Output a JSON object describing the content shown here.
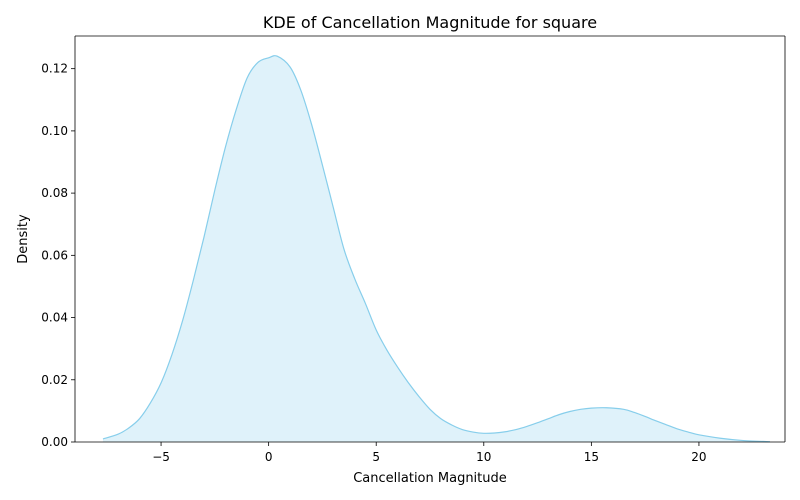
{
  "chart_data": {
    "type": "area",
    "title": "KDE of Cancellation Magnitude for square",
    "xlabel": "Cancellation Magnitude",
    "ylabel": "Density",
    "xlim": [
      -9,
      24
    ],
    "ylim": [
      0,
      0.1305
    ],
    "grid": false,
    "legend": "none",
    "x_ticks": [
      -5,
      0,
      5,
      10,
      15,
      20
    ],
    "x_tick_labels": [
      "−5",
      "0",
      "5",
      "10",
      "15",
      "20"
    ],
    "y_ticks": [
      0.0,
      0.02,
      0.04,
      0.06,
      0.08,
      0.1,
      0.12
    ],
    "y_tick_labels": [
      "0.00",
      "0.02",
      "0.04",
      "0.06",
      "0.08",
      "0.10",
      "0.12"
    ],
    "colors": {
      "line": "#87ceeb",
      "fill": "#87ceeb",
      "fill_opacity": 0.27,
      "axis": "#000000"
    },
    "series": [
      {
        "x": [
          -7.7,
          -7.0,
          -6.5,
          -6.0,
          -5.5,
          -5.0,
          -4.5,
          -4.0,
          -3.5,
          -3.0,
          -2.5,
          -2.0,
          -1.5,
          -1.0,
          -0.5,
          0.0,
          0.4,
          1.0,
          1.5,
          2.0,
          2.5,
          3.0,
          3.5,
          4.0,
          4.5,
          5.0,
          5.5,
          6.0,
          6.5,
          7.0,
          7.5,
          8.0,
          8.5,
          9.0,
          9.5,
          10.0,
          10.5,
          11.0,
          11.5,
          12.0,
          12.5,
          13.0,
          13.5,
          14.0,
          14.5,
          15.0,
          15.7,
          16.5,
          17.0,
          17.5,
          18.0,
          18.5,
          19.0,
          19.5,
          20.0,
          21.0,
          22.0,
          23.3
        ],
        "values": [
          0.001,
          0.0025,
          0.0045,
          0.0075,
          0.0125,
          0.019,
          0.028,
          0.039,
          0.052,
          0.066,
          0.081,
          0.095,
          0.107,
          0.117,
          0.122,
          0.1235,
          0.124,
          0.1205,
          0.113,
          0.102,
          0.089,
          0.0755,
          0.062,
          0.0525,
          0.0445,
          0.036,
          0.0295,
          0.024,
          0.019,
          0.0145,
          0.0105,
          0.0075,
          0.0055,
          0.004,
          0.0032,
          0.0028,
          0.0029,
          0.0033,
          0.004,
          0.005,
          0.0062,
          0.0075,
          0.0088,
          0.0098,
          0.0105,
          0.0109,
          0.011,
          0.0105,
          0.0095,
          0.0082,
          0.0068,
          0.0055,
          0.0042,
          0.0032,
          0.0023,
          0.0012,
          0.0005,
          0.0001
        ]
      }
    ]
  }
}
